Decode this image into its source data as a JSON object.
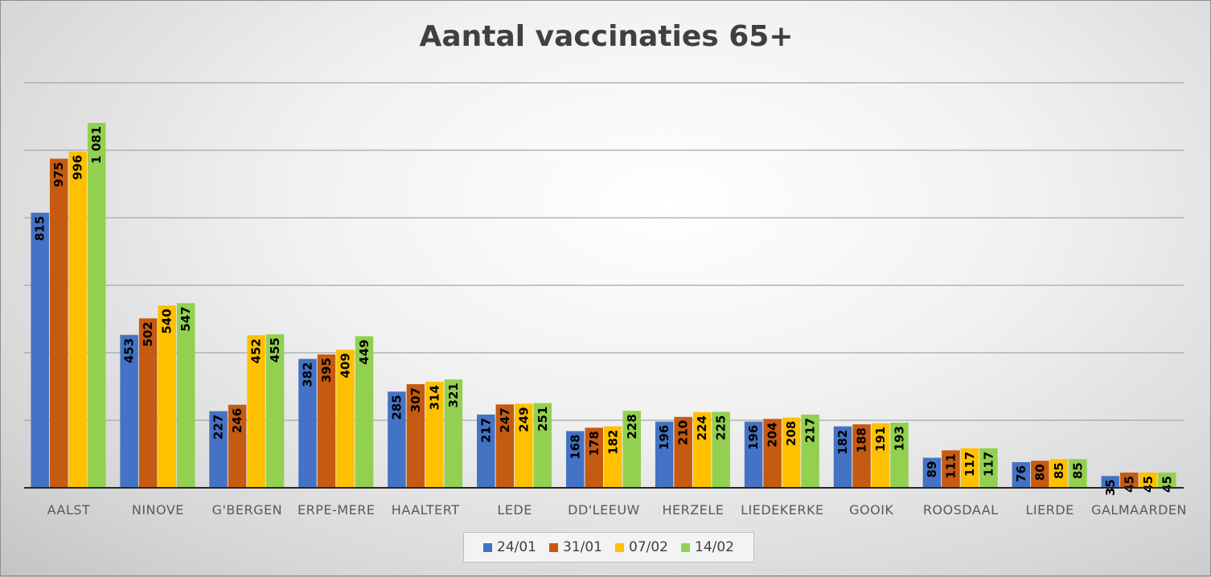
{
  "chart_data": {
    "type": "bar",
    "title": "Aantal vaccinaties 65+",
    "xlabel": "",
    "ylabel": "",
    "ylim": [
      0,
      1200
    ],
    "grid": true,
    "legend_position": "bottom",
    "categories": [
      "AALST",
      "NINOVE",
      "G'BERGEN",
      "ERPE-MERE",
      "HAALTERT",
      "LEDE",
      "DD'LEEUW",
      "HERZELE",
      "LIEDEKERKE",
      "GOOIK",
      "ROOSDAAL",
      "LIERDE",
      "GALMAARDEN"
    ],
    "series": [
      {
        "name": "24/01",
        "color": "#4472c4",
        "values": [
          815,
          453,
          227,
          382,
          285,
          217,
          168,
          196,
          196,
          182,
          89,
          76,
          35
        ],
        "labels": [
          "815",
          "453",
          "227",
          "382",
          "285",
          "217",
          "168",
          "196",
          "196",
          "182",
          "89",
          "76",
          "35"
        ]
      },
      {
        "name": "31/01",
        "color": "#c55a11",
        "values": [
          975,
          502,
          246,
          395,
          307,
          247,
          178,
          210,
          204,
          188,
          111,
          80,
          45
        ],
        "labels": [
          "975",
          "502",
          "246",
          "395",
          "307",
          "247",
          "178",
          "210",
          "204",
          "188",
          "111",
          "80",
          "45"
        ]
      },
      {
        "name": "07/02",
        "color": "#ffc000",
        "values": [
          996,
          540,
          452,
          409,
          314,
          249,
          182,
          224,
          208,
          191,
          117,
          85,
          45
        ],
        "labels": [
          "996",
          "540",
          "452",
          "409",
          "314",
          "249",
          "182",
          "224",
          "208",
          "191",
          "117",
          "85",
          "45"
        ]
      },
      {
        "name": "14/02",
        "color": "#92d050",
        "values": [
          1081,
          547,
          455,
          449,
          321,
          251,
          228,
          225,
          217,
          193,
          117,
          85,
          45
        ],
        "labels": [
          "1 081",
          "547",
          "455",
          "449",
          "321",
          "251",
          "228",
          "225",
          "217",
          "193",
          "117",
          "85",
          "45"
        ]
      }
    ]
  }
}
